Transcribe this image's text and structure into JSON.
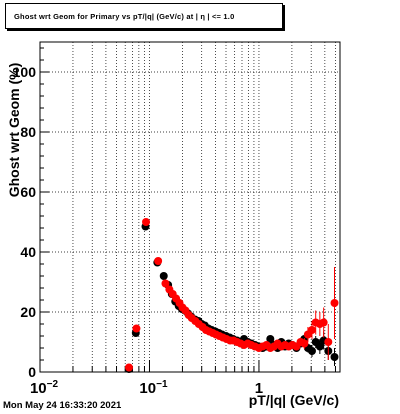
{
  "title": "Ghost wrt Geom for Primary vs pT/|q| (GeV/c) at | η | <= 1.0",
  "timestamp": "Mon May 24 16:33:20 2021",
  "chart_data": {
    "type": "scatter",
    "title": "Ghost wrt Geom for Primary vs pT/|q| (GeV/c) at | η | <= 1.0",
    "xlabel": "pT/|q| (GeV/c)",
    "ylabel": "Ghost wrt Geom (%)",
    "x_scale": "log",
    "xlim": [
      0.01,
      5.5
    ],
    "ylim": [
      0,
      110
    ],
    "grid": true,
    "x_major_ticks": [
      {
        "value": 0.01,
        "base": "10",
        "exp": "−2"
      },
      {
        "value": 0.1,
        "base": "10",
        "exp": "−1"
      },
      {
        "value": 1,
        "base": "1",
        "exp": ""
      }
    ],
    "y_ticks": [
      {
        "value": 0,
        "label": "0"
      },
      {
        "value": 20,
        "label": "20"
      },
      {
        "value": 40,
        "label": "40"
      },
      {
        "value": 60,
        "label": "60"
      },
      {
        "value": 80,
        "label": "80"
      },
      {
        "value": 100,
        "label": "100"
      }
    ],
    "series": [
      {
        "color": "#000000",
        "points": [
          [
            0.065,
            1.0
          ],
          [
            0.075,
            13.0
          ],
          [
            0.092,
            48.5
          ],
          [
            0.118,
            36.5
          ],
          [
            0.135,
            32.0
          ],
          [
            0.148,
            29.0
          ],
          [
            0.16,
            26.0
          ],
          [
            0.172,
            23.5
          ],
          [
            0.185,
            22.0
          ],
          [
            0.198,
            21.0
          ],
          [
            0.21,
            20.5
          ],
          [
            0.225,
            19.5
          ],
          [
            0.24,
            18.5
          ],
          [
            0.26,
            17.5
          ],
          [
            0.28,
            17.0
          ],
          [
            0.3,
            16.0
          ],
          [
            0.32,
            15.5
          ],
          [
            0.345,
            14.5
          ],
          [
            0.37,
            14.0
          ],
          [
            0.4,
            13.5
          ],
          [
            0.43,
            13.0
          ],
          [
            0.46,
            12.5
          ],
          [
            0.5,
            12.0
          ],
          [
            0.54,
            11.5
          ],
          [
            0.58,
            11.0
          ],
          [
            0.63,
            10.5
          ],
          [
            0.68,
            10.0
          ],
          [
            0.73,
            11.0
          ],
          [
            0.79,
            10.0
          ],
          [
            0.85,
            9.5
          ],
          [
            0.92,
            9.0
          ],
          [
            1.0,
            8.5
          ],
          [
            1.08,
            8.0
          ],
          [
            1.17,
            8.5
          ],
          [
            1.27,
            11.0
          ],
          [
            1.37,
            9.0
          ],
          [
            1.48,
            8.0
          ],
          [
            1.6,
            10.0
          ],
          [
            1.73,
            8.5
          ],
          [
            1.87,
            9.5
          ],
          [
            2.02,
            9.0
          ],
          [
            2.2,
            8.0
          ],
          [
            2.4,
            9.5
          ],
          [
            2.6,
            11.0
          ],
          [
            2.8,
            8.0
          ],
          [
            3.05,
            7.0
          ],
          [
            3.3,
            10.0
          ],
          [
            3.6,
            8.5
          ],
          [
            3.9,
            10.5
          ],
          [
            4.3,
            7.0
          ],
          [
            4.9,
            5.0
          ]
        ],
        "yerr": [
          0.5,
          1.0,
          1.0,
          1.0,
          1.0,
          0.8,
          0.8,
          0.7,
          0.7,
          0.6,
          0.6,
          0.6,
          0.5,
          0.5,
          0.5,
          0.5,
          0.5,
          0.5,
          0.5,
          0.5,
          0.5,
          0.5,
          0.5,
          0.5,
          0.5,
          0.5,
          0.5,
          0.6,
          0.6,
          0.6,
          0.6,
          0.6,
          0.7,
          0.7,
          0.8,
          0.8,
          0.9,
          1.0,
          1.0,
          1.0,
          1.1,
          1.2,
          1.3,
          1.5,
          1.5,
          2.0,
          2.0,
          2.5,
          3.0,
          3.0,
          3.0
        ]
      },
      {
        "color": "#ff0000",
        "points": [
          [
            0.065,
            1.5
          ],
          [
            0.076,
            14.5
          ],
          [
            0.093,
            50.0
          ],
          [
            0.12,
            37.0
          ],
          [
            0.14,
            29.5
          ],
          [
            0.152,
            27.5
          ],
          [
            0.163,
            26.0
          ],
          [
            0.175,
            24.5
          ],
          [
            0.188,
            23.0
          ],
          [
            0.2,
            21.5
          ],
          [
            0.213,
            20.5
          ],
          [
            0.228,
            19.0
          ],
          [
            0.243,
            18.0
          ],
          [
            0.262,
            17.0
          ],
          [
            0.282,
            16.0
          ],
          [
            0.305,
            15.0
          ],
          [
            0.328,
            14.0
          ],
          [
            0.352,
            13.5
          ],
          [
            0.378,
            13.0
          ],
          [
            0.405,
            12.5
          ],
          [
            0.435,
            12.0
          ],
          [
            0.468,
            11.5
          ],
          [
            0.505,
            11.0
          ],
          [
            0.545,
            10.5
          ],
          [
            0.585,
            10.5
          ],
          [
            0.63,
            10.0
          ],
          [
            0.68,
            9.5
          ],
          [
            0.73,
            9.0
          ],
          [
            0.79,
            9.5
          ],
          [
            0.85,
            9.0
          ],
          [
            0.92,
            8.5
          ],
          [
            1.0,
            8.0
          ],
          [
            1.08,
            8.5
          ],
          [
            1.17,
            9.0
          ],
          [
            1.27,
            8.0
          ],
          [
            1.37,
            8.5
          ],
          [
            1.48,
            9.5
          ],
          [
            1.6,
            8.5
          ],
          [
            1.73,
            9.0
          ],
          [
            1.87,
            8.5
          ],
          [
            2.02,
            9.0
          ],
          [
            2.2,
            8.5
          ],
          [
            2.4,
            10.0
          ],
          [
            2.6,
            9.5
          ],
          [
            2.8,
            12.5
          ],
          [
            3.05,
            14.0
          ],
          [
            3.3,
            16.5
          ],
          [
            3.6,
            16.0
          ],
          [
            3.9,
            16.5
          ],
          [
            4.3,
            10.0
          ],
          [
            4.9,
            23.0
          ]
        ],
        "yerr": [
          0.5,
          1.0,
          1.0,
          1.0,
          1.0,
          0.8,
          0.8,
          0.7,
          0.7,
          0.6,
          0.6,
          0.6,
          0.5,
          0.5,
          0.5,
          0.5,
          0.5,
          0.5,
          0.5,
          0.5,
          0.5,
          0.5,
          0.5,
          0.5,
          0.5,
          0.5,
          0.5,
          0.6,
          0.6,
          0.6,
          0.6,
          0.6,
          0.7,
          0.7,
          0.8,
          0.8,
          0.9,
          1.0,
          1.0,
          1.0,
          1.1,
          1.2,
          1.4,
          1.8,
          2.5,
          3.0,
          4.0,
          4.0,
          5.0,
          6.0,
          12.0
        ]
      }
    ]
  }
}
